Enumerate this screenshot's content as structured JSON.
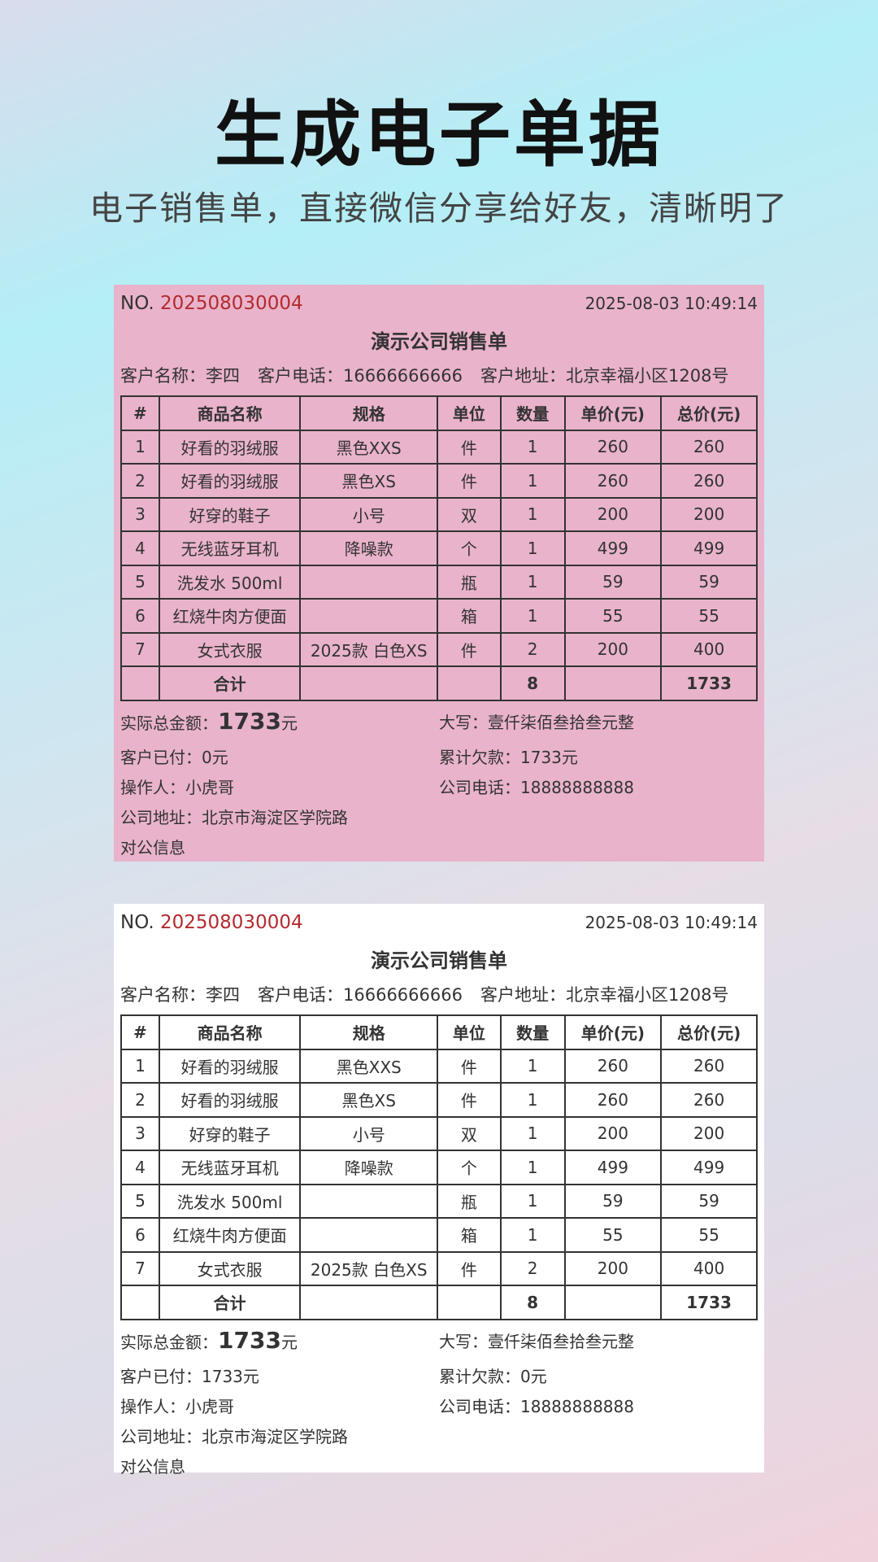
{
  "hero": {
    "title": "生成电子单据",
    "subtitle": "电子销售单，直接微信分享给好友，清晰明了"
  },
  "colors": {
    "pink_card": "#e9b3cb",
    "white_card": "#ffffff",
    "order_number": "#b32a2e"
  },
  "columns": [
    "#",
    "商品名称",
    "规格",
    "单位",
    "数量",
    "单价(元)",
    "总价(元)"
  ],
  "receipts": [
    {
      "no_label": "NO.",
      "no": "202508030004",
      "time": "2025-08-03 10:49:14",
      "title": "演示公司销售单",
      "customer": [
        "客户名称：李四",
        "客户电话：16666666666",
        "客户地址：北京幸福小区1208号"
      ],
      "rows": [
        [
          "1",
          "好看的羽绒服",
          "黑色XXS",
          "件",
          "1",
          "260",
          "260"
        ],
        [
          "2",
          "好看的羽绒服",
          "黑色XS",
          "件",
          "1",
          "260",
          "260"
        ],
        [
          "3",
          "好穿的鞋子",
          "小号",
          "双",
          "1",
          "200",
          "200"
        ],
        [
          "4",
          "无线蓝牙耳机",
          "降噪款",
          "个",
          "1",
          "499",
          "499"
        ],
        [
          "5",
          "洗发水 500ml",
          "",
          "瓶",
          "1",
          "59",
          "59"
        ],
        [
          "6",
          "红烧牛肉方便面",
          "",
          "箱",
          "1",
          "55",
          "55"
        ],
        [
          "7",
          "女式衣服",
          "2025款 白色XS",
          "件",
          "2",
          "200",
          "400"
        ]
      ],
      "total_row": [
        "",
        "合计",
        "",
        "",
        "8",
        "",
        "1733"
      ],
      "actual_label": "实际总金额：",
      "actual_value": "1733",
      "actual_unit": "元",
      "capital": "大写：壹仟柒佰叁拾叁元整",
      "paid": "客户已付：0元",
      "debt": "累计欠款：1733元",
      "operator": "操作人：小虎哥",
      "company_phone": "公司电话：18888888888",
      "company_address": "公司地址：北京市海淀区学院路",
      "bank_info": "对公信息"
    },
    {
      "no_label": "NO.",
      "no": "202508030004",
      "time": "2025-08-03 10:49:14",
      "title": "演示公司销售单",
      "customer": [
        "客户名称：李四",
        "客户电话：16666666666",
        "客户地址：北京幸福小区1208号"
      ],
      "rows": [
        [
          "1",
          "好看的羽绒服",
          "黑色XXS",
          "件",
          "1",
          "260",
          "260"
        ],
        [
          "2",
          "好看的羽绒服",
          "黑色XS",
          "件",
          "1",
          "260",
          "260"
        ],
        [
          "3",
          "好穿的鞋子",
          "小号",
          "双",
          "1",
          "200",
          "200"
        ],
        [
          "4",
          "无线蓝牙耳机",
          "降噪款",
          "个",
          "1",
          "499",
          "499"
        ],
        [
          "5",
          "洗发水 500ml",
          "",
          "瓶",
          "1",
          "59",
          "59"
        ],
        [
          "6",
          "红烧牛肉方便面",
          "",
          "箱",
          "1",
          "55",
          "55"
        ],
        [
          "7",
          "女式衣服",
          "2025款 白色XS",
          "件",
          "2",
          "200",
          "400"
        ]
      ],
      "total_row": [
        "",
        "合计",
        "",
        "",
        "8",
        "",
        "1733"
      ],
      "actual_label": "实际总金额：",
      "actual_value": "1733",
      "actual_unit": "元",
      "capital": "大写：壹仟柒佰叁拾叁元整",
      "paid": "客户已付：1733元",
      "debt": "累计欠款：0元",
      "operator": "操作人：小虎哥",
      "company_phone": "公司电话：18888888888",
      "company_address": "公司地址：北京市海淀区学院路",
      "bank_info": "对公信息"
    }
  ]
}
